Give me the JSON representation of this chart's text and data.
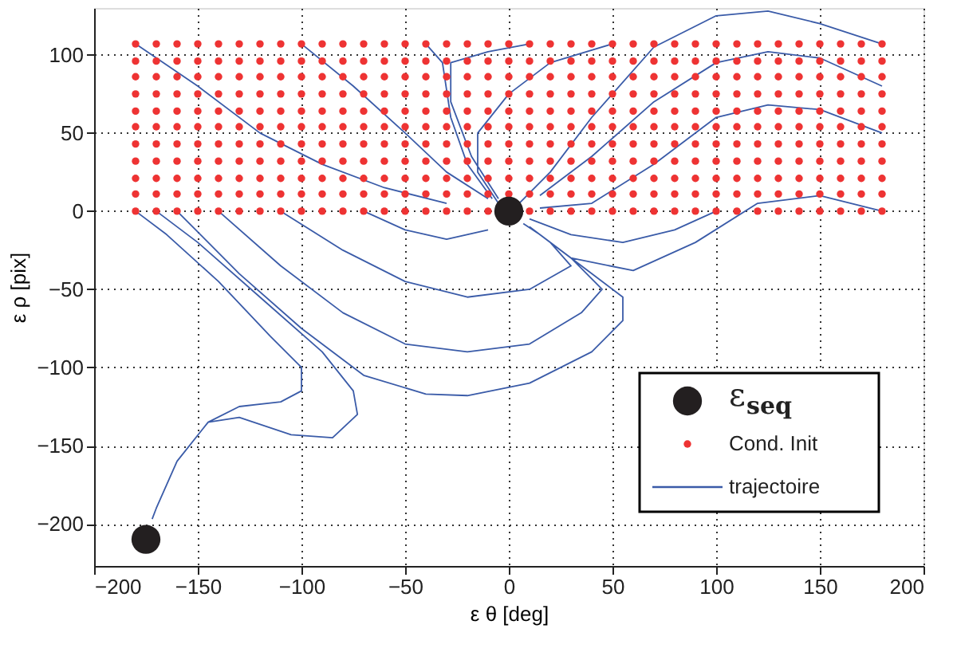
{
  "chart_data": {
    "type": "line",
    "xlabel": "ε θ [deg]",
    "ylabel": "ε ρ [pix]",
    "xlim": [
      -200,
      200
    ],
    "ylim": [
      -227,
      130
    ],
    "xticks": [
      -200,
      -150,
      -100,
      -50,
      0,
      50,
      100,
      150,
      200
    ],
    "yticks": [
      -200,
      -150,
      -100,
      -50,
      0,
      50,
      100
    ],
    "grid": true,
    "legend": "bottom right",
    "x": [
      -180,
      -170,
      -160,
      -150,
      -140,
      -130,
      -120,
      -110,
      -100,
      -90,
      -80,
      -70,
      -60,
      -50,
      -40,
      -30,
      -20,
      -10,
      0,
      10,
      20,
      30,
      40,
      50,
      60,
      70,
      80,
      90,
      100,
      110,
      120,
      130,
      140,
      150,
      160,
      170,
      180
    ],
    "series": [
      {
        "name": "ε$_{seq}$",
        "type": "bubble",
        "color": "#231f20",
        "x": [
          0,
          -175
        ],
        "values": [
          0,
          -210
        ],
        "sizes": [
          1,
          1
        ]
      },
      {
        "name": "Cond. Init",
        "type": "scatter",
        "color": "#ee3333",
        "values": [
          0,
          0,
          0,
          0,
          0,
          0,
          0,
          0,
          0,
          0,
          0,
          0,
          0,
          0,
          0,
          0,
          0,
          0,
          null,
          0,
          0,
          0,
          0,
          0,
          0,
          0,
          0,
          0,
          0,
          0,
          0,
          0,
          0,
          0,
          0,
          0,
          0
        ]
      },
      {
        "type": "scatter",
        "color": "#ee3333",
        "values": [
          11,
          11,
          11,
          11,
          11,
          11,
          11,
          11,
          11,
          11,
          11,
          11,
          11,
          11,
          11,
          11,
          11,
          11,
          11,
          11,
          11,
          11,
          11,
          11,
          11,
          11,
          11,
          11,
          11,
          11,
          11,
          11,
          11,
          11,
          11,
          11,
          11
        ]
      },
      {
        "type": "scatter",
        "color": "#ee3333",
        "values": [
          21,
          21,
          21,
          21,
          21,
          21,
          21,
          21,
          21,
          21,
          21,
          21,
          21,
          21,
          21,
          21,
          21,
          21,
          21,
          21,
          21,
          21,
          21,
          21,
          21,
          21,
          21,
          21,
          21,
          21,
          21,
          21,
          21,
          21,
          21,
          21,
          21
        ]
      },
      {
        "type": "scatter",
        "color": "#ee3333",
        "values": [
          32,
          32,
          32,
          32,
          32,
          32,
          32,
          32,
          32,
          32,
          32,
          32,
          32,
          32,
          32,
          32,
          32,
          32,
          32,
          32,
          32,
          32,
          32,
          32,
          32,
          32,
          32,
          32,
          32,
          32,
          32,
          32,
          32,
          32,
          32,
          32,
          32
        ]
      },
      {
        "type": "scatter",
        "color": "#ee3333",
        "values": [
          43,
          43,
          43,
          43,
          43,
          43,
          43,
          43,
          43,
          43,
          43,
          43,
          43,
          43,
          43,
          43,
          43,
          43,
          43,
          43,
          43,
          43,
          43,
          43,
          43,
          43,
          43,
          43,
          43,
          43,
          43,
          43,
          43,
          43,
          43,
          43,
          43
        ]
      },
      {
        "type": "scatter",
        "color": "#ee3333",
        "values": [
          54,
          54,
          54,
          54,
          54,
          54,
          54,
          54,
          54,
          54,
          54,
          54,
          54,
          54,
          54,
          54,
          54,
          54,
          54,
          54,
          54,
          54,
          54,
          54,
          54,
          54,
          54,
          54,
          54,
          54,
          54,
          54,
          54,
          54,
          54,
          54,
          54
        ]
      },
      {
        "type": "scatter",
        "color": "#ee3333",
        "values": [
          64,
          64,
          64,
          64,
          64,
          64,
          64,
          64,
          64,
          64,
          64,
          64,
          64,
          64,
          64,
          64,
          64,
          64,
          64,
          64,
          64,
          64,
          64,
          64,
          64,
          64,
          64,
          64,
          64,
          64,
          64,
          64,
          64,
          64,
          64,
          64,
          64
        ]
      },
      {
        "type": "scatter",
        "color": "#ee3333",
        "values": [
          75,
          75,
          75,
          75,
          75,
          75,
          75,
          75,
          75,
          75,
          75,
          75,
          75,
          75,
          75,
          75,
          75,
          75,
          75,
          75,
          75,
          75,
          75,
          75,
          75,
          75,
          75,
          75,
          75,
          75,
          75,
          75,
          75,
          75,
          75,
          75,
          75
        ]
      },
      {
        "type": "scatter",
        "color": "#ee3333",
        "values": [
          86,
          86,
          86,
          86,
          86,
          86,
          86,
          86,
          86,
          86,
          86,
          86,
          86,
          86,
          86,
          86,
          86,
          86,
          86,
          86,
          86,
          86,
          86,
          86,
          86,
          86,
          86,
          86,
          86,
          86,
          86,
          86,
          86,
          86,
          86,
          86,
          86
        ]
      },
      {
        "type": "scatter",
        "color": "#ee3333",
        "values": [
          96,
          96,
          96,
          96,
          96,
          96,
          96,
          96,
          96,
          96,
          96,
          96,
          96,
          96,
          96,
          96,
          96,
          96,
          96,
          96,
          96,
          96,
          96,
          96,
          96,
          96,
          96,
          96,
          96,
          96,
          96,
          96,
          96,
          96,
          96,
          96,
          96
        ]
      },
      {
        "type": "scatter",
        "color": "#ee3333",
        "values": [
          107,
          107,
          107,
          107,
          107,
          107,
          107,
          107,
          107,
          107,
          107,
          107,
          107,
          107,
          107,
          107,
          107,
          107,
          107,
          107,
          107,
          107,
          107,
          107,
          107,
          107,
          107,
          107,
          107,
          107,
          107,
          107,
          107,
          107,
          107,
          107,
          107
        ]
      },
      {
        "name": "trajectoire",
        "color": "#3a5ba8",
        "x": [
          -180,
          -165,
          -140,
          -115,
          -100,
          -100,
          -110,
          -130,
          -145,
          -160,
          -170,
          -172,
          null,
          -170,
          -150,
          -120,
          -90,
          -75,
          -73,
          -85,
          -105,
          -130,
          -145,
          null,
          -160,
          -130,
          -100,
          -70,
          -40,
          -20,
          10,
          40,
          55,
          55,
          40,
          15,
          7,
          null,
          -140,
          -110,
          -80,
          -50,
          -20,
          10,
          35,
          45,
          30,
          10,
          null,
          -110,
          -80,
          -50,
          -20,
          10,
          30,
          20,
          null,
          -70,
          -50,
          -30,
          -10,
          null,
          -180,
          -150,
          -120,
          -90,
          -60,
          -30,
          null,
          -100,
          -75,
          -50,
          -30,
          -10,
          null,
          -40,
          -32,
          -28,
          -20,
          -8,
          null,
          10,
          -10,
          -28,
          -28,
          -18,
          -5,
          null,
          50,
          20,
          0,
          -15,
          -15,
          -5,
          null,
          180,
          150,
          125,
          100,
          70,
          40,
          20,
          5,
          null,
          180,
          150,
          125,
          100,
          70,
          40,
          15,
          null,
          180,
          150,
          125,
          100,
          70,
          40,
          15,
          null,
          180,
          150,
          120,
          90,
          60,
          30,
          10,
          null,
          100,
          80,
          55,
          30,
          10
        ],
        "values": [
          0,
          -15,
          -45,
          -80,
          -100,
          -115,
          -122,
          -125,
          -135,
          -160,
          -190,
          -197,
          null,
          0,
          -20,
          -55,
          -90,
          -115,
          -130,
          -145,
          -143,
          -132,
          -135,
          null,
          0,
          -40,
          -75,
          -105,
          -117,
          -118,
          -110,
          -90,
          -70,
          -55,
          -40,
          -15,
          -8,
          null,
          0,
          -35,
          -65,
          -85,
          -90,
          -85,
          -65,
          -50,
          -30,
          -10,
          null,
          0,
          -25,
          -45,
          -55,
          -50,
          -35,
          -20,
          null,
          0,
          -12,
          -18,
          -12,
          null,
          107,
          80,
          50,
          30,
          15,
          5,
          null,
          107,
          80,
          50,
          25,
          8,
          null,
          107,
          95,
          60,
          30,
          8,
          null,
          107,
          102,
          95,
          70,
          35,
          8,
          null,
          107,
          95,
          75,
          50,
          25,
          5,
          null,
          107,
          120,
          128,
          125,
          105,
          60,
          25,
          5,
          null,
          80,
          98,
          102,
          95,
          70,
          35,
          10,
          null,
          50,
          65,
          68,
          60,
          30,
          5,
          2,
          null,
          0,
          10,
          5,
          -20,
          -38,
          -30,
          -10,
          null,
          0,
          -12,
          -20,
          -15,
          -5
        ]
      }
    ]
  }
}
